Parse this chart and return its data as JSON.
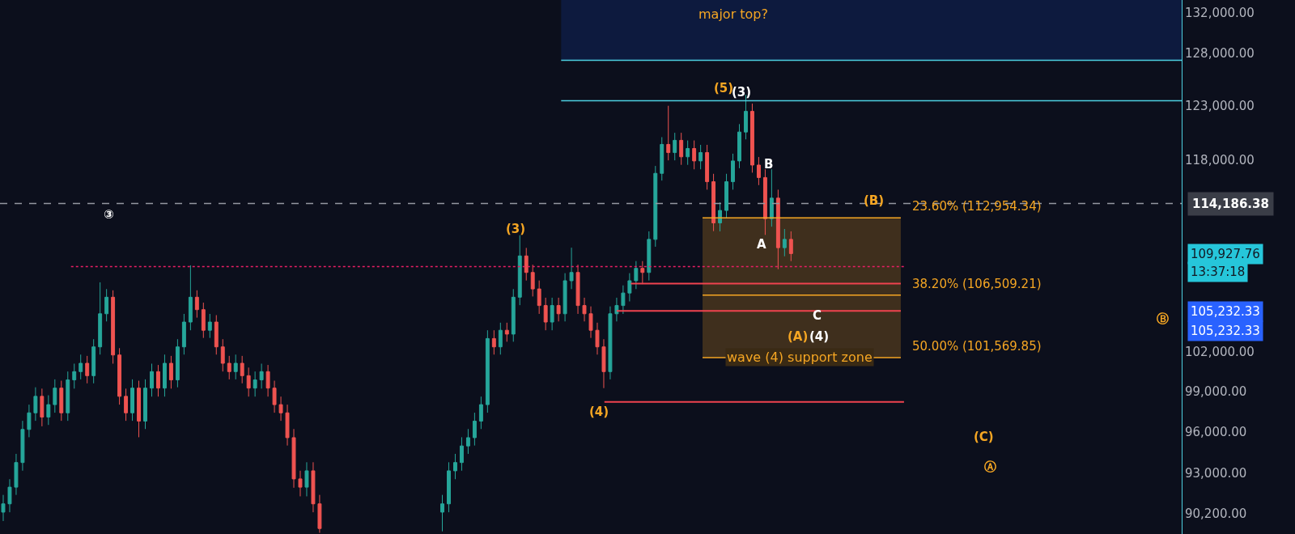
{
  "chart_data": {
    "type": "candlestick",
    "categories": [
      null,
      null,
      null,
      null,
      null,
      null,
      null,
      null,
      null,
      null,
      null,
      null,
      null,
      null,
      null,
      null,
      null,
      null,
      null,
      null,
      null,
      null,
      null,
      null,
      null,
      null,
      null,
      null,
      null,
      null,
      null,
      null,
      null,
      null,
      null,
      null,
      null,
      null,
      null,
      null,
      null,
      null,
      null,
      null,
      null,
      null,
      null,
      null,
      null,
      null,
      null,
      null,
      null,
      null,
      null,
      null,
      null,
      null,
      null,
      null,
      null,
      null,
      null,
      null,
      null,
      null,
      null,
      null,
      null,
      null,
      null,
      null,
      null,
      null,
      null,
      null,
      null,
      null,
      null,
      null,
      null,
      null,
      null,
      null,
      null,
      null,
      null,
      null,
      null,
      null,
      null,
      null,
      null,
      null,
      null,
      null,
      null,
      null,
      null,
      null,
      null,
      null,
      null,
      null,
      null,
      null,
      null,
      null,
      null,
      null,
      null,
      null,
      null,
      null,
      null,
      null,
      null,
      null,
      null,
      null,
      null,
      null,
      null,
      null,
      null,
      null,
      null,
      null,
      null,
      null,
      null,
      null,
      null,
      null,
      null,
      null,
      null,
      null,
      null,
      null,
      null,
      null,
      null,
      null,
      null,
      null,
      null,
      null,
      null,
      null,
      null,
      null,
      null,
      null,
      null,
      null,
      null,
      null,
      null,
      null,
      null,
      null,
      null,
      null,
      null,
      null,
      null,
      null,
      null,
      null,
      null,
      null,
      null,
      null,
      null,
      null,
      null,
      null,
      null,
      null,
      null,
      null,
      null
    ],
    "ohlc": [
      [
        90310,
        91500,
        89700,
        90880
      ],
      [
        90880,
        92600,
        90300,
        92040
      ],
      [
        92040,
        94400,
        91500,
        93780
      ],
      [
        93780,
        96800,
        93200,
        96170
      ],
      [
        96170,
        98000,
        95600,
        97390
      ],
      [
        97390,
        99300,
        96800,
        98620
      ],
      [
        98620,
        99200,
        96400,
        97080
      ],
      [
        97080,
        98700,
        96500,
        98000
      ],
      [
        98000,
        99900,
        97400,
        99240
      ],
      [
        99240,
        99800,
        96800,
        97390
      ],
      [
        97390,
        100500,
        96800,
        99860
      ],
      [
        99860,
        101100,
        99200,
        100490
      ],
      [
        100490,
        101800,
        99900,
        101130
      ],
      [
        101130,
        101700,
        99600,
        100180
      ],
      [
        100180,
        103000,
        99600,
        102400
      ],
      [
        102400,
        107550,
        101800,
        105010
      ],
      [
        105010,
        107000,
        104400,
        106340
      ],
      [
        106340,
        106900,
        101100,
        101770
      ],
      [
        101770,
        102300,
        98000,
        98620
      ],
      [
        98620,
        99200,
        96800,
        97390
      ],
      [
        97390,
        99900,
        96800,
        99240
      ],
      [
        99240,
        99800,
        95600,
        96780
      ],
      [
        96780,
        99900,
        96200,
        99240
      ],
      [
        99240,
        101100,
        98600,
        100490
      ],
      [
        100490,
        101000,
        98600,
        99240
      ],
      [
        99240,
        101800,
        98600,
        101130
      ],
      [
        101130,
        101700,
        99200,
        99860
      ],
      [
        99860,
        103000,
        99300,
        102400
      ],
      [
        102400,
        105000,
        101800,
        104350
      ],
      [
        104350,
        108950,
        103700,
        106340
      ],
      [
        106340,
        106900,
        104700,
        105340
      ],
      [
        105340,
        105900,
        103100,
        103700
      ],
      [
        103700,
        105000,
        103100,
        104350
      ],
      [
        104350,
        104900,
        101800,
        102400
      ],
      [
        102400,
        103000,
        100500,
        101130
      ],
      [
        101130,
        101700,
        99900,
        100490
      ],
      [
        100490,
        101800,
        99900,
        101130
      ],
      [
        101130,
        101700,
        99600,
        100180
      ],
      [
        100180,
        100800,
        98600,
        99240
      ],
      [
        99240,
        100500,
        98600,
        99860
      ],
      [
        99860,
        101100,
        99200,
        100490
      ],
      [
        100490,
        101000,
        98600,
        99240
      ],
      [
        99240,
        99800,
        97400,
        98000
      ],
      [
        98000,
        98600,
        96800,
        97390
      ],
      [
        97390,
        98000,
        95000,
        95570
      ],
      [
        95570,
        96200,
        92000,
        92620
      ],
      [
        92620,
        93200,
        91400,
        92040
      ],
      [
        92040,
        93800,
        91400,
        93190
      ],
      [
        93190,
        93800,
        90300,
        90880
      ],
      [
        90880,
        91500,
        88900,
        89190
      ],
      null,
      null,
      null,
      null,
      null,
      null,
      null,
      null,
      null,
      null,
      null,
      null,
      null,
      null,
      null,
      null,
      null,
      null,
      [
        90310,
        91500,
        89000,
        90880
      ],
      [
        90880,
        93800,
        90300,
        93190
      ],
      [
        93190,
        94400,
        92600,
        93780
      ],
      [
        93780,
        95600,
        93200,
        94970
      ],
      [
        94970,
        96200,
        94400,
        95570
      ],
      [
        95570,
        97400,
        95000,
        96780
      ],
      [
        96780,
        98600,
        96200,
        98000
      ],
      [
        98000,
        103700,
        97400,
        103050
      ],
      [
        103050,
        103700,
        101800,
        102400
      ],
      [
        102400,
        104300,
        101800,
        103700
      ],
      [
        103700,
        104300,
        102800,
        103400
      ],
      [
        103400,
        107000,
        102800,
        106340
      ],
      [
        106340,
        111470,
        105700,
        109730
      ],
      [
        109730,
        110400,
        107700,
        108360
      ],
      [
        108360,
        109000,
        106400,
        107010
      ],
      [
        107010,
        107700,
        105000,
        105670
      ],
      [
        105670,
        106300,
        103700,
        104350
      ],
      [
        104350,
        106300,
        103700,
        105670
      ],
      [
        105670,
        106300,
        104400,
        105010
      ],
      [
        105010,
        108300,
        104400,
        107680
      ],
      [
        107680,
        110420,
        107000,
        108360
      ],
      [
        108360,
        109000,
        105000,
        105670
      ],
      [
        105670,
        106300,
        104400,
        105010
      ],
      [
        105010,
        105600,
        103100,
        103700
      ],
      [
        103700,
        104300,
        101800,
        102400
      ],
      [
        102400,
        103000,
        99240,
        100490
      ],
      [
        100490,
        105600,
        99900,
        105010
      ],
      [
        105010,
        106300,
        104400,
        105670
      ],
      [
        105670,
        107300,
        105000,
        106680
      ],
      [
        106680,
        108300,
        106000,
        107680
      ],
      [
        107680,
        109300,
        107000,
        108700
      ],
      [
        108700,
        109300,
        107400,
        108360
      ],
      [
        108360,
        111800,
        107700,
        111120
      ],
      [
        111120,
        117500,
        110500,
        116840
      ],
      [
        116840,
        120100,
        116200,
        119440
      ],
      [
        119440,
        123000,
        118000,
        118700
      ],
      [
        118700,
        120500,
        118000,
        119810
      ],
      [
        119810,
        120500,
        117600,
        118320
      ],
      [
        118320,
        119800,
        117600,
        119070
      ],
      [
        119070,
        119800,
        117200,
        117950
      ],
      [
        117950,
        119400,
        117200,
        118700
      ],
      [
        118700,
        119400,
        115400,
        116100
      ],
      [
        116100,
        116800,
        111820,
        112520
      ],
      [
        112520,
        114300,
        111800,
        113590
      ],
      [
        113590,
        116800,
        112900,
        116100
      ],
      [
        116100,
        118600,
        115400,
        117950
      ],
      [
        117950,
        121300,
        117300,
        120570
      ],
      [
        120570,
        124020,
        119900,
        122480
      ],
      [
        122480,
        123200,
        116900,
        117580
      ],
      [
        117580,
        118300,
        115800,
        116470
      ],
      [
        116470,
        117200,
        111500,
        112880
      ],
      [
        112880,
        117200,
        112200,
        114660
      ],
      [
        114660,
        115400,
        108630,
        110420
      ],
      [
        110420,
        112000,
        109700,
        111120
      ],
      [
        111120,
        111800,
        109300,
        109927.76
      ],
      null,
      null,
      null,
      null,
      null,
      null,
      null,
      null,
      null,
      null,
      null,
      null,
      null,
      null,
      null,
      null,
      null,
      null,
      null,
      null,
      null,
      null,
      null,
      null,
      null,
      null,
      null,
      null,
      null,
      null,
      null,
      null,
      null,
      null,
      null,
      null,
      null,
      null,
      null,
      null,
      null,
      null,
      null,
      null,
      null,
      null,
      null,
      null,
      null,
      null,
      null,
      null,
      null,
      null,
      null,
      null,
      null,
      null,
      null,
      null
    ],
    "log": true,
    "ylim": [
      88820,
      133300
    ],
    "yticks": [
      {
        "value": 90200,
        "label": "90,200.00"
      },
      {
        "value": 93000,
        "label": "93,000.00"
      },
      {
        "value": 96000,
        "label": "96,000.00"
      },
      {
        "value": 99000,
        "label": "99,000.00"
      },
      {
        "value": 102000,
        "label": "102,000.00"
      },
      {
        "value": 118000,
        "label": "118,000.00"
      },
      {
        "value": 123000,
        "label": "123,000.00"
      },
      {
        "value": 128000,
        "label": "128,000.00"
      },
      {
        "value": 132000,
        "label": "132,000.00"
      }
    ],
    "tick_labels": "y",
    "bands": [
      {
        "axis": "y",
        "from": 101569.85,
        "to": 112954.34,
        "label": "wave (4) support zone",
        "color": "#f5a623"
      },
      {
        "axis": "y",
        "from": 127330,
        "to": 133300,
        "label": "major top?",
        "color": "#0d1f4a"
      }
    ],
    "ref_lines": [
      {
        "axis": "y",
        "value": 114186.38,
        "label": "114,186.38",
        "color": "#9598a1",
        "line_style": "dashed"
      },
      {
        "axis": "y",
        "value": 108840,
        "color": "#e91e63",
        "line_style": "dotted"
      },
      {
        "axis": "y",
        "value": 127330,
        "color": "#4dd0e1"
      },
      {
        "axis": "y",
        "value": 123470,
        "color": "#4dd0e1"
      },
      {
        "axis": "y",
        "value": 112954.34,
        "label": "23.60% (112,954.34)",
        "color": "#f5a623"
      },
      {
        "axis": "y",
        "value": 106509.21,
        "label": "38.20% (106,509.21)",
        "color": "#f5a623"
      },
      {
        "axis": "y",
        "value": 101569.85,
        "label": "50.00% (101,569.85)",
        "color": "#f5a623"
      },
      {
        "axis": "y",
        "value": 107440,
        "color": "#f0434f"
      },
      {
        "axis": "y",
        "value": 105232.33,
        "color": "#f0434f"
      },
      {
        "axis": "y",
        "value": 98200,
        "color": "#f0434f"
      }
    ],
    "annotations": [
      "③",
      "(3)",
      "(4)",
      "(5)",
      "(3)",
      "B",
      "A",
      "C",
      "(A)",
      "(4)",
      "(B)",
      "(C)",
      "Ⓑ",
      "Ⓐ",
      "109,927.76",
      "13:37:18",
      "105,232.33",
      "105,232.33"
    ]
  }
}
